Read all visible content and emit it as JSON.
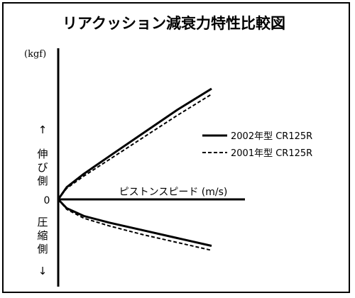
{
  "chart_data": {
    "type": "line",
    "title": "リアクッション減衰力特性比較図",
    "y_unit": "(kgf)",
    "x_axis_label": "ピストンスピード (m/s)",
    "origin_label": "0",
    "upper_side_label": "伸び側",
    "lower_side_label": "圧縮側",
    "upper_arrow": "↑",
    "lower_arrow": "↓",
    "xlim": [
      0,
      1
    ],
    "ylim": [
      -1,
      1
    ],
    "grid": false,
    "legend_position": "right",
    "series": [
      {
        "name": "2002年型 CR125R",
        "style": "solid",
        "color": "#000000",
        "x": [
          0,
          0.05,
          0.15,
          0.3,
          0.5,
          0.7,
          0.9
        ],
        "y_rebound": [
          0,
          0.11,
          0.23,
          0.39,
          0.6,
          0.81,
          1.0
        ],
        "y_compression": [
          0,
          -0.08,
          -0.15,
          -0.21,
          -0.28,
          -0.35,
          -0.42
        ]
      },
      {
        "name": "2001年型 CR125R",
        "style": "dashed",
        "color": "#000000",
        "x": [
          0,
          0.05,
          0.15,
          0.3,
          0.5,
          0.7,
          0.9
        ],
        "y_rebound": [
          0,
          0.1,
          0.21,
          0.36,
          0.56,
          0.76,
          0.95
        ],
        "y_compression": [
          0,
          -0.09,
          -0.17,
          -0.24,
          -0.32,
          -0.39,
          -0.46
        ]
      }
    ]
  }
}
